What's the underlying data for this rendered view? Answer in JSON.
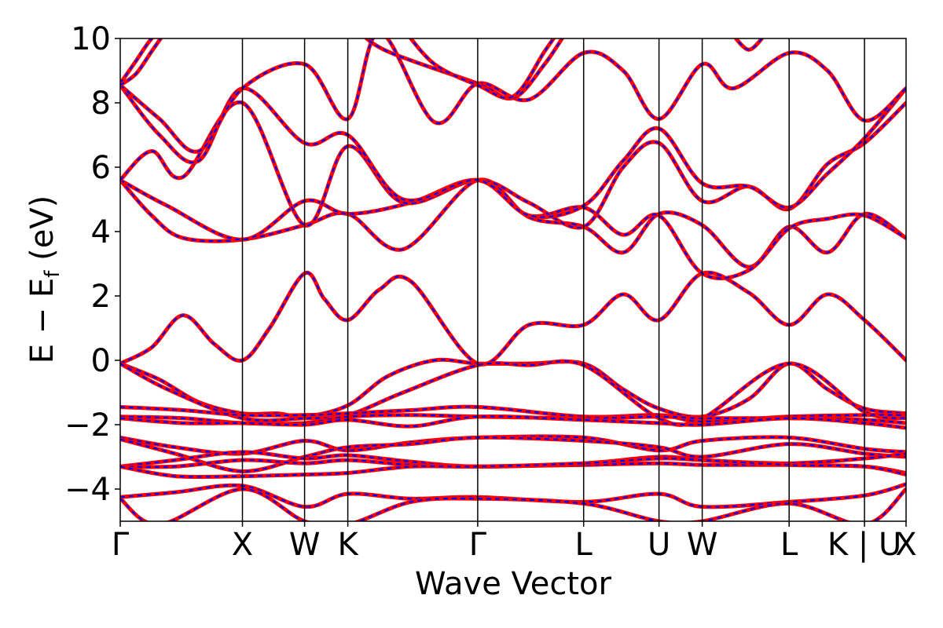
{
  "chart_data": {
    "type": "line",
    "title": "",
    "xlabel": "Wave Vector",
    "ylabel": "E − E",
    "ylabel_sub": "f",
    "ylabel_unit": " (eV)",
    "ylim": [
      -5,
      10
    ],
    "y_ticks": [
      10,
      8,
      6,
      4,
      2,
      0,
      -2,
      -4
    ],
    "y_tick_labels": [
      "10",
      "8",
      "6",
      "4",
      "2",
      "0",
      "−2",
      "−4"
    ],
    "x_range": [
      0,
      1
    ],
    "high_symmetry_points": [
      {
        "label": "Γ",
        "x": 0.0
      },
      {
        "label": "X",
        "x": 0.1555
      },
      {
        "label": "W",
        "x": 0.2346
      },
      {
        "label": "K",
        "x": 0.2896
      },
      {
        "label": "Γ",
        "x": 0.4549
      },
      {
        "label": "L",
        "x": 0.5897
      },
      {
        "label": "U",
        "x": 0.6856
      },
      {
        "label": "W",
        "x": 0.7406
      },
      {
        "label": "L",
        "x": 0.8512
      },
      {
        "label": "K | U",
        "x": 0.9471
      },
      {
        "label": "X",
        "x": 1.0
      }
    ],
    "grid": false,
    "legend": "none",
    "series_style": {
      "outer_color": "#ff0000",
      "inner_color": "#0000ff",
      "inner_dash": "dashed"
    },
    "series": [
      {
        "x": [
          0,
          0.04,
          0.08,
          0.12,
          0.1555,
          0.19,
          0.2346,
          0.26,
          0.2896,
          0.33,
          0.37,
          0.4549,
          0.52,
          0.5897,
          0.64,
          0.6856,
          0.7406,
          0.8,
          0.8512,
          0.9,
          0.9471,
          1.0
        ],
        "y": [
          -0.1,
          0.4,
          1.4,
          0.5,
          0.0,
          1.0,
          2.7,
          1.9,
          1.25,
          2.2,
          2.45,
          -0.1,
          1.1,
          1.1,
          2.05,
          1.25,
          2.7,
          2.1,
          1.1,
          2.05,
          1.25,
          0.0
        ]
      },
      {
        "x": [
          0,
          0.05,
          0.1,
          0.1555,
          0.2,
          0.2346,
          0.2896,
          0.34,
          0.4,
          0.4549,
          0.52,
          0.5897,
          0.64,
          0.6856,
          0.7406,
          0.8,
          0.8512,
          0.9,
          0.9471,
          1.0
        ],
        "y": [
          -0.1,
          -0.6,
          -1.3,
          -1.65,
          -1.65,
          -1.75,
          -1.4,
          -0.5,
          0.0,
          -0.1,
          -0.1,
          -0.1,
          -0.9,
          -1.5,
          -1.75,
          -1.2,
          -0.1,
          -0.9,
          -1.5,
          -1.65
        ]
      },
      {
        "x": [
          0,
          0.06,
          0.1555,
          0.2346,
          0.2896,
          0.36,
          0.4549,
          0.52,
          0.5897,
          0.6856,
          0.7406,
          0.8512,
          0.9471,
          1.0
        ],
        "y": [
          -0.1,
          -0.9,
          -1.8,
          -1.8,
          -1.7,
          -1.0,
          -0.15,
          -0.15,
          -0.15,
          -1.8,
          -1.8,
          -0.1,
          -1.6,
          -1.8
        ]
      },
      {
        "x": [
          0,
          0.08,
          0.1555,
          0.2346,
          0.2896,
          0.37,
          0.4549,
          0.5897,
          0.6856,
          0.7406,
          0.8512,
          0.9471,
          1.0
        ],
        "y": [
          -1.45,
          -1.55,
          -1.7,
          -1.7,
          -1.65,
          -1.55,
          -1.45,
          -1.75,
          -1.7,
          -1.9,
          -1.75,
          -1.7,
          -1.7
        ]
      },
      {
        "x": [
          0,
          0.08,
          0.1555,
          0.2346,
          0.2896,
          0.37,
          0.4549,
          0.5897,
          0.6856,
          0.7406,
          0.8512,
          0.9471,
          1.0
        ],
        "y": [
          -1.75,
          -1.8,
          -1.95,
          -1.95,
          -1.75,
          -1.7,
          -1.75,
          -1.8,
          -1.75,
          -1.8,
          -1.8,
          -1.85,
          -1.95
        ]
      },
      {
        "x": [
          0,
          0.08,
          0.1555,
          0.2346,
          0.2896,
          0.37,
          0.4549,
          0.5897,
          0.6856,
          0.7406,
          0.8512,
          0.9471,
          1.0
        ],
        "y": [
          -1.8,
          -1.95,
          -1.95,
          -2.0,
          -1.85,
          -2.05,
          -1.75,
          -1.85,
          -1.95,
          -2.0,
          -1.8,
          -1.95,
          -2.1
        ]
      },
      {
        "x": [
          0,
          0.07,
          0.1555,
          0.2346,
          0.2896,
          0.37,
          0.4549,
          0.5897,
          0.6856,
          0.7406,
          0.8512,
          0.9471,
          1.0
        ],
        "y": [
          -2.4,
          -2.7,
          -2.9,
          -2.5,
          -2.8,
          -2.55,
          -2.4,
          -2.4,
          -2.8,
          -2.5,
          -2.4,
          -2.75,
          -2.85
        ]
      },
      {
        "x": [
          0,
          0.07,
          0.1555,
          0.2346,
          0.2896,
          0.37,
          0.4549,
          0.5897,
          0.6856,
          0.7406,
          0.8512,
          0.9471,
          1.0
        ],
        "y": [
          -2.45,
          -2.9,
          -3.45,
          -3.0,
          -2.7,
          -2.6,
          -2.4,
          -2.5,
          -2.7,
          -3.0,
          -2.6,
          -2.9,
          -3.0
        ]
      },
      {
        "x": [
          0,
          0.07,
          0.1555,
          0.2346,
          0.2896,
          0.37,
          0.4549,
          0.5897,
          0.6856,
          0.7406,
          0.8512,
          0.9471,
          1.0
        ],
        "y": [
          -3.3,
          -3.1,
          -2.85,
          -3.05,
          -2.95,
          -3.15,
          -3.3,
          -3.2,
          -3.0,
          -3.1,
          -3.2,
          -3.05,
          -2.9
        ]
      },
      {
        "x": [
          0,
          0.07,
          0.1555,
          0.2346,
          0.2896,
          0.37,
          0.4549,
          0.5897,
          0.6856,
          0.7406,
          0.8512,
          0.9471,
          1.0
        ],
        "y": [
          -3.3,
          -3.3,
          -3.1,
          -3.2,
          -3.1,
          -3.25,
          -3.3,
          -3.25,
          -3.2,
          -3.25,
          -3.25,
          -3.3,
          -3.5
        ]
      },
      {
        "x": [
          0,
          0.07,
          0.1555,
          0.2346,
          0.2896,
          0.37,
          0.4549,
          0.5897,
          0.6856,
          0.7406,
          0.8512,
          0.9471,
          1.0
        ],
        "y": [
          -3.3,
          -3.6,
          -3.6,
          -3.55,
          -3.5,
          -3.3,
          -3.3,
          -3.2,
          -3.05,
          -3.1,
          -3.25,
          -3.3,
          -3.55
        ]
      },
      {
        "x": [
          0,
          0.07,
          0.1555,
          0.2346,
          0.2896,
          0.37,
          0.4549,
          0.5897,
          0.6856,
          0.7406,
          0.8512,
          0.9471,
          1.0
        ],
        "y": [
          -4.25,
          -4.1,
          -3.9,
          -4.55,
          -4.15,
          -4.3,
          -4.25,
          -4.4,
          -4.15,
          -4.55,
          -4.4,
          -4.2,
          -3.85
        ]
      },
      {
        "x": [
          0,
          0.05,
          0.1555,
          0.2346,
          0.2896,
          0.37,
          0.4549,
          0.5897,
          0.6856,
          0.7406,
          0.8512,
          0.9471,
          1.0
        ],
        "y": [
          -4.3,
          -5.1,
          -4.0,
          -5.0,
          -5.1,
          -4.4,
          -4.3,
          -4.45,
          -5.0,
          -5.0,
          -4.45,
          -5.1,
          -4.0
        ]
      },
      {
        "x": [
          0,
          0.04,
          0.08,
          0.1555,
          0.2346,
          0.2896,
          0.36,
          0.4549,
          0.52,
          0.5897,
          0.64,
          0.6856,
          0.7406,
          0.8,
          0.8512,
          0.9,
          0.9471,
          1.0
        ],
        "y": [
          5.6,
          4.5,
          3.8,
          3.75,
          4.2,
          4.55,
          3.45,
          5.6,
          4.45,
          4.15,
          3.35,
          4.55,
          4.2,
          2.9,
          4.15,
          3.35,
          4.55,
          3.8
        ]
      },
      {
        "x": [
          0,
          0.06,
          0.1555,
          0.2346,
          0.2896,
          0.37,
          0.4549,
          0.52,
          0.5897,
          0.64,
          0.6856,
          0.7406,
          0.8,
          0.8512,
          0.9,
          0.9471,
          1.0
        ],
        "y": [
          5.6,
          4.8,
          3.75,
          4.95,
          4.55,
          4.9,
          5.6,
          4.5,
          4.75,
          3.9,
          4.5,
          2.7,
          2.8,
          4.1,
          4.4,
          4.5,
          3.8
        ]
      },
      {
        "x": [
          0,
          0.04,
          0.08,
          0.1555,
          0.2346,
          0.2896,
          0.36,
          0.4549,
          0.52,
          0.5897,
          0.64,
          0.6856,
          0.7406,
          0.8,
          0.8512,
          0.9,
          0.9471,
          1.0
        ],
        "y": [
          5.6,
          6.5,
          5.7,
          8.0,
          4.2,
          6.65,
          4.9,
          5.6,
          4.9,
          4.15,
          6.0,
          6.75,
          4.95,
          5.4,
          4.7,
          6.1,
          6.75,
          8.0
        ]
      },
      {
        "x": [
          0,
          0.05,
          0.1,
          0.1555,
          0.2346,
          0.2896,
          0.36,
          0.4549,
          0.52,
          0.5897,
          0.64,
          0.6856,
          0.7406,
          0.8,
          0.8512,
          0.9,
          0.9471,
          1.0
        ],
        "y": [
          8.55,
          7.0,
          6.2,
          8.45,
          6.75,
          7.0,
          5.0,
          5.6,
          4.5,
          4.8,
          6.2,
          7.2,
          5.5,
          5.4,
          4.75,
          5.8,
          6.9,
          8.45
        ]
      },
      {
        "x": [
          0,
          0.05,
          0.1,
          0.1555,
          0.2346,
          0.2896,
          0.33,
          0.4,
          0.4549,
          0.52,
          0.5897,
          0.64,
          0.6856,
          0.7406,
          0.78,
          0.8512,
          0.9,
          0.9471,
          1.0
        ],
        "y": [
          8.55,
          7.5,
          6.5,
          8.45,
          9.2,
          7.5,
          10.2,
          7.4,
          8.6,
          8.1,
          9.55,
          9.0,
          7.5,
          9.2,
          8.45,
          9.55,
          9.0,
          7.45,
          8.45
        ]
      },
      {
        "x": [
          0,
          0.02,
          0.04,
          0.06
        ],
        "y": [
          8.6,
          9.3,
          10.0,
          10.4
        ]
      },
      {
        "x": [
          0,
          0.02,
          0.04,
          0.06
        ],
        "y": [
          8.55,
          8.9,
          9.6,
          10.3
        ]
      },
      {
        "x": [
          0.3,
          0.34,
          0.4549,
          0.5,
          0.54,
          0.57
        ],
        "y": [
          10.3,
          9.6,
          8.6,
          8.15,
          9.2,
          10.3
        ]
      },
      {
        "x": [
          0.36,
          0.4,
          0.4549,
          0.5,
          0.54,
          0.56
        ],
        "y": [
          10.3,
          9.2,
          8.55,
          8.2,
          9.6,
          10.3
        ]
      },
      {
        "x": [
          0.78,
          0.8,
          0.82
        ],
        "y": [
          10.1,
          9.65,
          10.1
        ]
      }
    ]
  }
}
